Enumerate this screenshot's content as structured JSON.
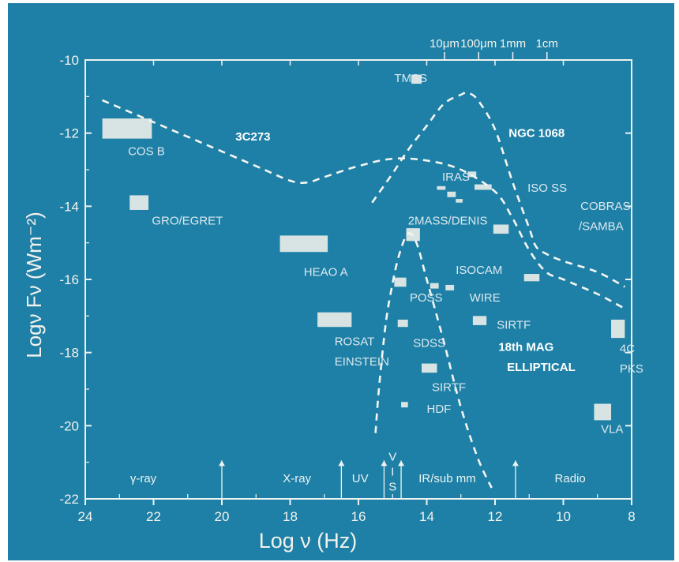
{
  "chart_data": {
    "type": "scatter",
    "xlabel": "Log ν   (Hz)",
    "ylabel": "Logν  Fν  (Wm⁻²)",
    "xlim": [
      24,
      8
    ],
    "ylim": [
      -22,
      -10
    ],
    "x_ticks": [
      "24",
      "22",
      "20",
      "18",
      "16",
      "14",
      "12",
      "10",
      "8"
    ],
    "y_ticks": [
      "-10",
      "-12",
      "-14",
      "-16",
      "-18",
      "-20",
      "-22"
    ],
    "wavelength_ticks": [
      {
        "label": "10μm",
        "x": 13.48
      },
      {
        "label": "100μm",
        "x": 12.48
      },
      {
        "label": "1mm",
        "x": 11.48
      },
      {
        "label": "1cm",
        "x": 10.48
      }
    ],
    "curves": [
      {
        "name": "3C273",
        "points": [
          [
            23.5,
            -11.1
          ],
          [
            22,
            -11.7
          ],
          [
            20.5,
            -12.3
          ],
          [
            19,
            -12.9
          ],
          [
            18,
            -13.3
          ],
          [
            17.5,
            -13.35
          ],
          [
            17,
            -13.2
          ],
          [
            16,
            -12.9
          ],
          [
            15,
            -12.7
          ],
          [
            14,
            -12.75
          ],
          [
            13,
            -13
          ],
          [
            12,
            -13.6
          ],
          [
            11.5,
            -14.3
          ],
          [
            11,
            -15.2
          ],
          [
            10.5,
            -15.8
          ],
          [
            10,
            -16
          ],
          [
            9,
            -16.4
          ],
          [
            8.2,
            -16.8
          ]
        ]
      },
      {
        "name": "NGC 1068",
        "points": [
          [
            15.6,
            -13.9
          ],
          [
            15,
            -13.1
          ],
          [
            14.5,
            -12.4
          ],
          [
            14,
            -11.8
          ],
          [
            13.5,
            -11.2
          ],
          [
            13,
            -10.95
          ],
          [
            12.8,
            -10.9
          ],
          [
            12.5,
            -11.1
          ],
          [
            12,
            -11.9
          ],
          [
            11.5,
            -13.3
          ],
          [
            11,
            -14.6
          ],
          [
            10.8,
            -15.1
          ],
          [
            10.5,
            -15.3
          ],
          [
            10,
            -15.5
          ],
          [
            9,
            -15.8
          ],
          [
            8.2,
            -16.2
          ]
        ]
      },
      {
        "name": "18th MAG ELLIPTICAL",
        "points": [
          [
            15.5,
            -20.2
          ],
          [
            15.4,
            -19
          ],
          [
            15.2,
            -17.2
          ],
          [
            15,
            -16.1
          ],
          [
            14.8,
            -15.3
          ],
          [
            14.55,
            -14.75
          ],
          [
            14.3,
            -15
          ],
          [
            14,
            -16
          ],
          [
            13.5,
            -17.7
          ],
          [
            13,
            -19.5
          ],
          [
            12.5,
            -20.9
          ],
          [
            12.1,
            -21.7
          ]
        ]
      }
    ],
    "surveys": [
      {
        "name": "TMSS",
        "x": [
          14.45,
          14.15
        ],
        "y": [
          -10.4,
          -10.65
        ]
      },
      {
        "name": "COS B",
        "x": [
          23.5,
          22.05
        ],
        "y": [
          -11.6,
          -12.15
        ]
      },
      {
        "name": "GRO/EGRET",
        "x": [
          22.7,
          22.15
        ],
        "y": [
          -13.7,
          -14.1
        ]
      },
      {
        "name": "IRAS",
        "x": [
          13.7,
          13.45
        ],
        "y": [
          -13.45,
          -13.55
        ]
      },
      {
        "name": "IRAS",
        "x": [
          13.4,
          13.15
        ],
        "y": [
          -13.6,
          -13.75
        ]
      },
      {
        "name": "IRAS",
        "x": [
          13.15,
          12.95
        ],
        "y": [
          -13.8,
          -13.9
        ]
      },
      {
        "name": "IRAS",
        "x": [
          12.8,
          12.55
        ],
        "y": [
          -13.05,
          -13.2
        ]
      },
      {
        "name": "ISO SS",
        "x": [
          12.6,
          12.1
        ],
        "y": [
          -13.4,
          -13.55
        ]
      },
      {
        "name": "2MASS/DENIS",
        "x": [
          14.6,
          14.2
        ],
        "y": [
          -14.6,
          -14.95
        ]
      },
      {
        "name": "COBRAS/SAMBA",
        "x": [
          12.05,
          11.6
        ],
        "y": [
          -14.5,
          -14.75
        ]
      },
      {
        "name": "HEAO A",
        "x": [
          18.3,
          16.9
        ],
        "y": [
          -14.8,
          -15.25
        ]
      },
      {
        "name": "ISOCAM",
        "x": [
          13.9,
          13.65
        ],
        "y": [
          -16.1,
          -16.25
        ]
      },
      {
        "name": "ISOCAM",
        "x": [
          13.45,
          13.2
        ],
        "y": [
          -16.15,
          -16.3
        ]
      },
      {
        "name": "POSS",
        "x": [
          14.95,
          14.6
        ],
        "y": [
          -15.95,
          -16.2
        ]
      },
      {
        "name": "WIRE",
        "x": [
          11.15,
          10.7
        ],
        "y": [
          -15.85,
          -16.05
        ]
      },
      {
        "name": "ROSAT EINSTEIN",
        "x": [
          17.2,
          16.2
        ],
        "y": [
          -16.9,
          -17.3
        ]
      },
      {
        "name": "SDSS",
        "x": [
          14.85,
          14.55
        ],
        "y": [
          -17.1,
          -17.3
        ]
      },
      {
        "name": "SIRTF",
        "x": [
          12.65,
          12.25
        ],
        "y": [
          -17.0,
          -17.25
        ]
      },
      {
        "name": "SIRTF",
        "x": [
          14.15,
          13.7
        ],
        "y": [
          -18.3,
          -18.55
        ]
      },
      {
        "name": "HDF",
        "x": [
          14.75,
          14.55
        ],
        "y": [
          -19.35,
          -19.5
        ]
      },
      {
        "name": "4C PKS",
        "x": [
          8.6,
          8.2
        ],
        "y": [
          -17.1,
          -17.6
        ]
      },
      {
        "name": "VLA",
        "x": [
          9.1,
          8.6
        ],
        "y": [
          -19.4,
          -19.85
        ]
      }
    ],
    "labels": [
      {
        "text": "3C273",
        "x": 19.6,
        "y": -12.2,
        "style": "white"
      },
      {
        "text": "NGC 1068",
        "x": 11.6,
        "y": -12.1,
        "style": "white"
      },
      {
        "text": "TMSS",
        "x": 14.95,
        "y": -10.6,
        "style": "dim"
      },
      {
        "text": "COS B",
        "x": 22.75,
        "y": -12.6,
        "style": "dim"
      },
      {
        "text": "GRO/EGRET",
        "x": 22.05,
        "y": -14.5,
        "style": "dim"
      },
      {
        "text": "IRAS",
        "x": 13.55,
        "y": -13.3,
        "style": "dim"
      },
      {
        "text": "ISO SS",
        "x": 11.05,
        "y": -13.6,
        "style": "dim"
      },
      {
        "text": "2MASS/DENIS",
        "x": 14.55,
        "y": -14.5,
        "style": "dim"
      },
      {
        "text": "COBRAS",
        "x": 9.5,
        "y": -14.1,
        "style": "dim"
      },
      {
        "text": "/SAMBA",
        "x": 9.55,
        "y": -14.65,
        "style": "dim"
      },
      {
        "text": "HEAO A",
        "x": 17.6,
        "y": -15.9,
        "style": "dim"
      },
      {
        "text": "ISOCAM",
        "x": 13.15,
        "y": -15.85,
        "style": "dim"
      },
      {
        "text": "POSS",
        "x": 14.5,
        "y": -16.6,
        "style": "dim"
      },
      {
        "text": "WIRE",
        "x": 12.75,
        "y": -16.6,
        "style": "dim"
      },
      {
        "text": "SIRTF",
        "x": 11.95,
        "y": -17.35,
        "style": "dim"
      },
      {
        "text": "ROSAT",
        "x": 16.7,
        "y": -17.8,
        "style": "dim"
      },
      {
        "text": "EINSTEIN",
        "x": 16.7,
        "y": -18.35,
        "style": "dim"
      },
      {
        "text": "SDSS",
        "x": 14.4,
        "y": -17.85,
        "style": "dim"
      },
      {
        "text": "18th MAG",
        "x": 11.9,
        "y": -17.95,
        "style": "white"
      },
      {
        "text": "ELLIPTICAL",
        "x": 11.65,
        "y": -18.5,
        "style": "white"
      },
      {
        "text": "SIRTF",
        "x": 13.85,
        "y": -19.05,
        "style": "dim"
      },
      {
        "text": "HDF",
        "x": 14.0,
        "y": -19.65,
        "style": "dim"
      },
      {
        "text": "4C",
        "x": 8.35,
        "y": -18.0,
        "style": "dim"
      },
      {
        "text": "PKS",
        "x": 8.35,
        "y": -18.55,
        "style": "dim"
      },
      {
        "text": "VLA",
        "x": 8.9,
        "y": -20.2,
        "style": "dim"
      }
    ],
    "bands": [
      {
        "label": "γ-ray",
        "x": 22.3
      },
      {
        "label": "X-ray",
        "x": 17.8
      },
      {
        "label": "UV",
        "x": 15.95
      },
      {
        "label": "IR/sub mm",
        "x": 13.4
      },
      {
        "label": "Radio",
        "x": 9.8
      }
    ],
    "vis_letters": [
      "V",
      "I",
      "S"
    ],
    "band_arrows": [
      20,
      16.5,
      15.25,
      14.75,
      11.4
    ]
  },
  "colors": {
    "background": "#1e80a6",
    "axes": "#eef2f0",
    "box": "#d8e4e3",
    "dim_text": "#cfe1e8"
  }
}
